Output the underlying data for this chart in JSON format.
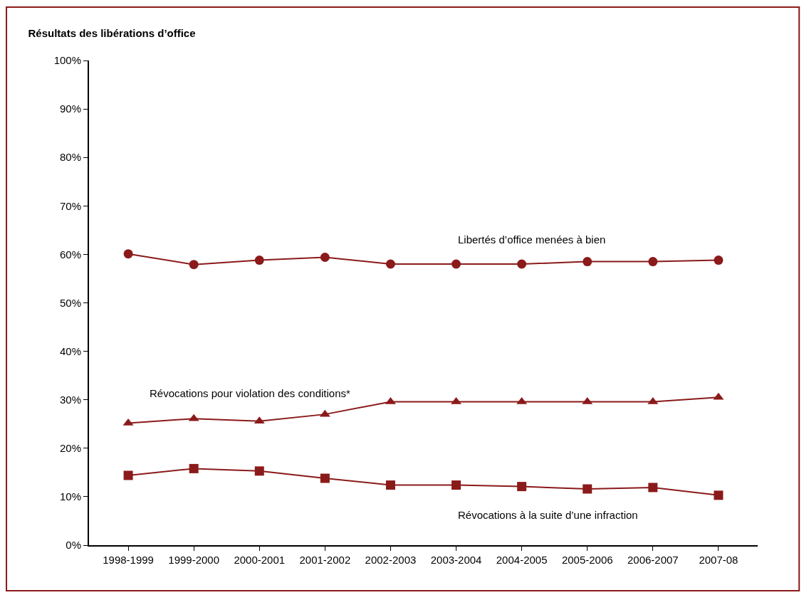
{
  "chart_data": {
    "type": "line",
    "title": "Résultats des libérations d’office",
    "categories": [
      "1998-1999",
      "1999-2000",
      "2000-2001",
      "2001-2002",
      "2002-2003",
      "2003-2004",
      "2004-2005",
      "2005-2006",
      "2006-2007",
      "2007-08"
    ],
    "series": [
      {
        "name": "Libertés d’office menées à bien",
        "color": "#8b1a1a",
        "marker": "circle",
        "values": [
          60.1,
          57.9,
          58.8,
          59.4,
          58,
          58,
          58,
          58.5,
          58.5,
          58.8
        ]
      },
      {
        "name": "Révocations pour violation des conditions*",
        "color": "#8b1a1a",
        "marker": "triangle",
        "values": [
          25.2,
          26.1,
          25.6,
          27,
          29.6,
          29.6,
          29.6,
          29.6,
          29.6,
          30.5
        ]
      },
      {
        "name": "Révocations à la suite d’une infraction",
        "color": "#8b1a1a",
        "marker": "square",
        "values": [
          14.4,
          15.8,
          15.3,
          13.8,
          12.4,
          12.4,
          12.1,
          11.6,
          11.9,
          10.3
        ]
      }
    ],
    "ylim": [
      0,
      100
    ],
    "yticks": [
      {
        "value": 0,
        "label": "0%"
      },
      {
        "value": 10,
        "label": "10%"
      },
      {
        "value": 20,
        "label": "20%"
      },
      {
        "value": 30,
        "label": "30%"
      },
      {
        "value": 40,
        "label": "40%"
      },
      {
        "value": 50,
        "label": "50%"
      },
      {
        "value": 60,
        "label": "60%"
      },
      {
        "value": 70,
        "label": "70%"
      },
      {
        "value": 80,
        "label": "80%"
      },
      {
        "value": 90,
        "label": "90%"
      },
      {
        "value": 100,
        "label": "100%"
      }
    ],
    "legend": false,
    "line_style": "solid"
  }
}
